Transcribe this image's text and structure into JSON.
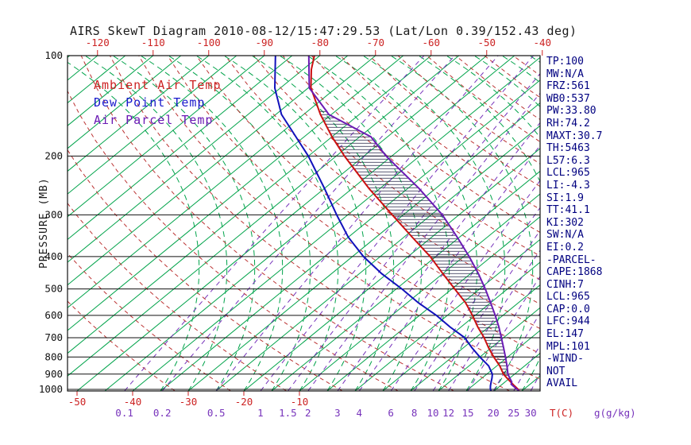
{
  "title": "AIRS SkewT Diagram 2010-08-12/15:47:29.53 (Lat/Lon 0.39/152.43 deg)",
  "legend": [
    {
      "label": "Ambient Air Temp",
      "color": "#cc2222"
    },
    {
      "label": "Dew Point Temp",
      "color": "#1a1acc"
    },
    {
      "label": "Air Parcel Temp",
      "color": "#6a1ab4"
    }
  ],
  "axes": {
    "pressure_label": "PRESSURE (MB)",
    "pressure_ticks": [
      100,
      200,
      300,
      400,
      500,
      600,
      700,
      800,
      900,
      1000
    ],
    "top_temp_ticks": [
      -120,
      -110,
      -100,
      -90,
      -80,
      -70,
      -60,
      -50,
      -40
    ],
    "bottom_temp_ticks": [
      -50,
      -40,
      -30,
      -20,
      -10
    ],
    "mixing_ratio_ticks": [
      0.1,
      0.2,
      0.5,
      1,
      1.5,
      2,
      3,
      4,
      6,
      8,
      10,
      12,
      15,
      20,
      25,
      30
    ],
    "temp_caption": "T(C)",
    "mixing_caption": "g(g/kg)"
  },
  "stats_panel": [
    "TP:100",
    "MW:N/A",
    "FRZ:561",
    "WB0:537",
    "PW:33.80",
    "RH:74.2",
    "MAXT:30.7",
    "TH:5463",
    "L57:6.3",
    "LCL:965",
    "LI:-4.3",
    "SI:1.9",
    "TT:41.1",
    "KI:302",
    "SW:N/A",
    "EI:0.2",
    "-PARCEL-",
    "CAPE:1868",
    "CINH:7",
    "LCL:965",
    "CAP:0.0",
    "LFC:944",
    "EL:147",
    "MPL:101",
    "-WIND-",
    "NOT",
    "AVAIL"
  ],
  "colors": {
    "isotherm": "#00a34a",
    "moist_adiabat": "#00a34a",
    "dry_adiabat": "#bb3333",
    "mixing_ratio": "#7733bb",
    "grid": "#111111",
    "text": "#111111",
    "temp_axis": "#cc2222",
    "hatch": "#222244",
    "stats_text": "#000080",
    "title_text": "#1a1a1a",
    "background": "#ffffff"
  },
  "chart_data": {
    "type": "line",
    "title": "AIRS SkewT Diagram 2010-08-12/15:47:29.53 (Lat/Lon 0.39/152.43 deg)",
    "xlabel": "T(C)",
    "ylabel": "PRESSURE (MB)",
    "y_axis": {
      "scale": "log",
      "range": [
        100,
        1011
      ],
      "ticks": [
        100,
        200,
        300,
        400,
        500,
        600,
        700,
        800,
        900,
        1000
      ]
    },
    "x_axis": {
      "top_ticks": [
        -120,
        -110,
        -100,
        -90,
        -80,
        -70,
        -60,
        -50,
        -40
      ],
      "bottom_ticks": [
        -50,
        -40,
        -30,
        -20,
        -10
      ],
      "skew": "45deg"
    },
    "mixing_ratio_lines_g_per_kg": [
      0.1,
      0.2,
      0.5,
      1,
      1.5,
      2,
      3,
      4,
      6,
      8,
      10,
      12,
      15,
      20,
      25,
      30
    ],
    "series": [
      {
        "name": "Ambient Air Temp",
        "color": "#cc1111",
        "units": [
          "mb",
          "degC"
        ],
        "points": [
          [
            1011,
            29.5
          ],
          [
            1000,
            29
          ],
          [
            975,
            27.5
          ],
          [
            950,
            26
          ],
          [
            925,
            24.5
          ],
          [
            900,
            23
          ],
          [
            850,
            20.5
          ],
          [
            800,
            17.5
          ],
          [
            750,
            14.5
          ],
          [
            700,
            11.5
          ],
          [
            650,
            8
          ],
          [
            600,
            4.5
          ],
          [
            550,
            0.5
          ],
          [
            500,
            -4.5
          ],
          [
            450,
            -10
          ],
          [
            400,
            -16
          ],
          [
            350,
            -23.5
          ],
          [
            300,
            -32
          ],
          [
            250,
            -42
          ],
          [
            200,
            -53.5
          ],
          [
            175,
            -60
          ],
          [
            150,
            -67
          ],
          [
            125,
            -74.5
          ],
          [
            110,
            -78.5
          ],
          [
            100,
            -81
          ]
        ]
      },
      {
        "name": "Dew Point Temp",
        "color": "#1111bb",
        "units": [
          "mb",
          "degC"
        ],
        "points": [
          [
            1011,
            24.5
          ],
          [
            1000,
            24
          ],
          [
            975,
            23.2
          ],
          [
            950,
            22.5
          ],
          [
            925,
            21.8
          ],
          [
            900,
            21
          ],
          [
            850,
            18.5
          ],
          [
            800,
            15
          ],
          [
            750,
            11.5
          ],
          [
            700,
            8
          ],
          [
            650,
            3
          ],
          [
            600,
            -2
          ],
          [
            550,
            -8
          ],
          [
            500,
            -14
          ],
          [
            450,
            -21
          ],
          [
            400,
            -28
          ],
          [
            350,
            -35
          ],
          [
            300,
            -42
          ],
          [
            250,
            -50
          ],
          [
            200,
            -60
          ],
          [
            150,
            -74
          ],
          [
            125,
            -81
          ],
          [
            100,
            -88
          ]
        ]
      },
      {
        "name": "Air Parcel Temp",
        "color": "#6a1ab4",
        "units": [
          "mb",
          "degC"
        ],
        "points": [
          [
            1011,
            29.5
          ],
          [
            1000,
            28.8
          ],
          [
            965,
            26.6
          ],
          [
            950,
            26.2
          ],
          [
            925,
            25
          ],
          [
            900,
            23.8
          ],
          [
            850,
            21.8
          ],
          [
            800,
            19.6
          ],
          [
            750,
            17.2
          ],
          [
            700,
            14.6
          ],
          [
            650,
            11.8
          ],
          [
            600,
            8.6
          ],
          [
            550,
            5
          ],
          [
            500,
            1
          ],
          [
            450,
            -3.6
          ],
          [
            400,
            -9
          ],
          [
            350,
            -15.4
          ],
          [
            300,
            -23
          ],
          [
            250,
            -33
          ],
          [
            200,
            -46
          ],
          [
            175,
            -53
          ],
          [
            150,
            -65.5
          ],
          [
            147,
            -66.5
          ],
          [
            125,
            -74.8
          ],
          [
            100,
            -82
          ]
        ]
      }
    ],
    "hatch": {
      "between": [
        "Ambient Air Temp",
        "Air Parcel Temp"
      ],
      "pressure_from": 944,
      "pressure_to": 147
    }
  }
}
